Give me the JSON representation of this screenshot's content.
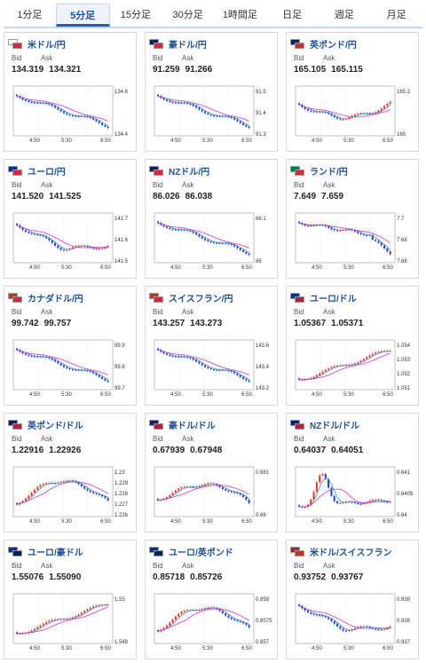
{
  "tabs": [
    {
      "label": "1分足",
      "active": false
    },
    {
      "label": "5分足",
      "active": true
    },
    {
      "label": "15分足",
      "active": false
    },
    {
      "label": "30分足",
      "active": false
    },
    {
      "label": "1時間足",
      "active": false
    },
    {
      "label": "日足",
      "active": false
    },
    {
      "label": "週足",
      "active": false
    },
    {
      "label": "月足",
      "active": false
    }
  ],
  "labels": {
    "bid": "Bid",
    "ask": "Ask"
  },
  "colors": {
    "up": "#e8312a",
    "down": "#1f3fbf",
    "ma_short": "#3a96b4",
    "ma_long": "#cc33cc",
    "link": "#1d4f91"
  },
  "x_ticks": [
    "4:50",
    "5:30",
    "6:50"
  ],
  "cards": [
    {
      "pair": "米ドル/円",
      "bid": "134.319",
      "ask": "134.321",
      "flags": [
        "#ffffff",
        "#d7263d"
      ],
      "y_ticks": [
        "134.6",
        "134.4"
      ],
      "trend": "down"
    },
    {
      "pair": "豪ドル/円",
      "bid": "91.259",
      "ask": "91.266",
      "flags": [
        "#012169",
        "#d7263d"
      ],
      "y_ticks": [
        "91.5",
        "91.4",
        "91.3"
      ],
      "trend": "down"
    },
    {
      "pair": "英ポンド/円",
      "bid": "165.105",
      "ask": "165.115",
      "flags": [
        "#012169",
        "#d7263d"
      ],
      "y_ticks": [
        "165.2",
        "165"
      ],
      "trend": "vshape"
    },
    {
      "pair": "ユーロ/円",
      "bid": "141.520",
      "ask": "141.525",
      "flags": [
        "#003399",
        "#d7263d"
      ],
      "y_ticks": [
        "141.7",
        "141.6",
        "141.5"
      ],
      "trend": "downflat"
    },
    {
      "pair": "NZドル/円",
      "bid": "86.026",
      "ask": "86.038",
      "flags": [
        "#012169",
        "#d7263d"
      ],
      "y_ticks": [
        "86.1",
        "86"
      ],
      "trend": "down"
    },
    {
      "pair": "ランド/円",
      "bid": "7.649",
      "ask": "7.659",
      "flags": [
        "#007a4d",
        "#d7263d"
      ],
      "y_ticks": [
        "7.7",
        "7.68",
        "7.66"
      ],
      "trend": "drop"
    },
    {
      "pair": "カナダドル/円",
      "bid": "99.742",
      "ask": "99.757",
      "flags": [
        "#d52b1e",
        "#d7263d"
      ],
      "y_ticks": [
        "99.9",
        "99.8",
        "99.7"
      ],
      "trend": "down"
    },
    {
      "pair": "スイスフラン/円",
      "bid": "143.257",
      "ask": "143.273",
      "flags": [
        "#d52b1e",
        "#d7263d"
      ],
      "y_ticks": [
        "143.6",
        "143.4",
        "143.2"
      ],
      "trend": "down"
    },
    {
      "pair": "ユーロ/ドル",
      "bid": "1.05367",
      "ask": "1.05371",
      "flags": [
        "#003399",
        "#b22234"
      ],
      "y_ticks": [
        "1.054",
        "1.053",
        "1.052",
        "1.051"
      ],
      "trend": "up"
    },
    {
      "pair": "英ポンド/ドル",
      "bid": "1.22916",
      "ask": "1.22926",
      "flags": [
        "#012169",
        "#b22234"
      ],
      "y_ticks": [
        "1.23",
        "1.229",
        "1.228",
        "1.227",
        "1.226"
      ],
      "trend": "humpup"
    },
    {
      "pair": "豪ドル/ドル",
      "bid": "0.67939",
      "ask": "0.67948",
      "flags": [
        "#012169",
        "#b22234"
      ],
      "y_ticks": [
        "0.681",
        "0.68"
      ],
      "trend": "humpdown"
    },
    {
      "pair": "NZドル/ドル",
      "bid": "0.64037",
      "ask": "0.64051",
      "flags": [
        "#012169",
        "#b22234"
      ],
      "y_ticks": [
        "0.641",
        "0.6405",
        "0.64"
      ],
      "trend": "humpflat"
    },
    {
      "pair": "ユーロ/豪ドル",
      "bid": "1.55076",
      "ask": "1.55090",
      "flags": [
        "#003399",
        "#012169"
      ],
      "y_ticks": [
        "1.55",
        "1.548"
      ],
      "trend": "up"
    },
    {
      "pair": "ユーロ/英ポンド",
      "bid": "0.85718",
      "ask": "0.85726",
      "flags": [
        "#003399",
        "#012169"
      ],
      "y_ticks": [
        "0.858",
        "0.8575",
        "0.857"
      ],
      "trend": "humpup"
    },
    {
      "pair": "米ドル/スイスフラン",
      "bid": "0.93752",
      "ask": "0.93767",
      "flags": [
        "#b22234",
        "#d52b1e"
      ],
      "y_ticks": [
        "0.939",
        "0.938",
        "0.937"
      ],
      "trend": "downflat"
    }
  ]
}
